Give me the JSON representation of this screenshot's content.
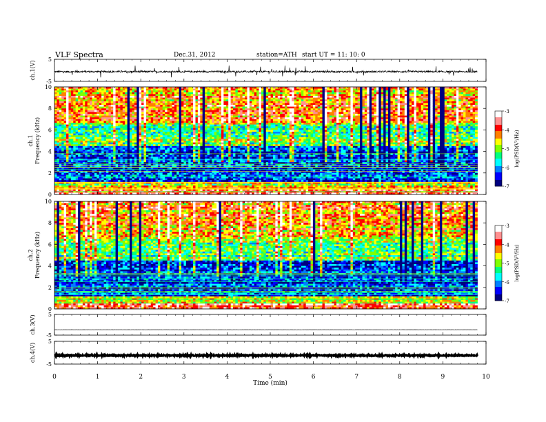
{
  "header": {
    "title": "VLF  Spectra",
    "date": "Dec.31, 2012",
    "station": "station=ATH",
    "start": "start  UT  =    11: 10: 0"
  },
  "chart_data": [
    {
      "type": "line",
      "name": "ch1-waveform",
      "ylabel": "ch.1(V)",
      "ylim": [
        -5,
        5
      ],
      "yticks": [
        5,
        -5
      ],
      "x_range": [
        0,
        9.8
      ],
      "baseline": -0.6,
      "noise_amplitude": 0.4,
      "spike_amplitude": 2.5
    },
    {
      "type": "heatmap",
      "name": "ch1-spectrogram",
      "ylabel_top": "ch.1",
      "ylabel": "Frequency  (kHz)",
      "ylim": [
        0,
        10
      ],
      "yticks": [
        0,
        2,
        4,
        6,
        8,
        10
      ],
      "x_range": [
        0,
        9.8
      ],
      "colorbar": {
        "label": "log(PSD(V²/Hz)",
        "range": [
          -7,
          -3
        ],
        "ticks": [
          "-3",
          "-4",
          "-5",
          "-6",
          "-7"
        ],
        "colors": [
          "#000080",
          "#0000ff",
          "#0080ff",
          "#00ffff",
          "#00ff80",
          "#80ff00",
          "#ffff00",
          "#ff8000",
          "#ff0000",
          "#ff9090",
          "#ffffff"
        ]
      }
    },
    {
      "type": "heatmap",
      "name": "ch2-spectrogram",
      "ylabel_top": "ch.2",
      "ylabel": "Frequency  (kHz)",
      "ylim": [
        0,
        10
      ],
      "yticks": [
        0,
        2,
        4,
        6,
        8,
        10
      ],
      "x_range": [
        0,
        9.8
      ],
      "colorbar": {
        "label": "log(PSD(V²/Hz)",
        "range": [
          -7,
          -3
        ],
        "ticks": [
          "-3",
          "-4",
          "-5",
          "-6",
          "-7"
        ],
        "colors": [
          "#000080",
          "#0000ff",
          "#0080ff",
          "#00ffff",
          "#00ff80",
          "#80ff00",
          "#ffff00",
          "#ff8000",
          "#ff0000",
          "#ff9090",
          "#ffffff"
        ]
      }
    },
    {
      "type": "line",
      "name": "ch3-waveform",
      "ylabel": "ch.3(V)",
      "ylim": [
        -5,
        5
      ],
      "yticks": [
        5,
        -5
      ],
      "x_range": [
        0,
        9.8
      ],
      "baseline": -2.4,
      "noise_amplitude": 0.05
    },
    {
      "type": "line",
      "name": "ch4-waveform",
      "ylabel": "ch.4(V)",
      "ylim": [
        -5,
        5
      ],
      "yticks": [
        5,
        -5
      ],
      "x_range": [
        0,
        9.8
      ],
      "baseline": -1.2,
      "noise_amplitude": 0.25
    }
  ],
  "xaxis": {
    "label": "Time  (min)",
    "range": [
      0,
      10
    ],
    "ticks": [
      "0",
      "1",
      "2",
      "3",
      "4",
      "5",
      "6",
      "7",
      "8",
      "9",
      "10"
    ]
  }
}
